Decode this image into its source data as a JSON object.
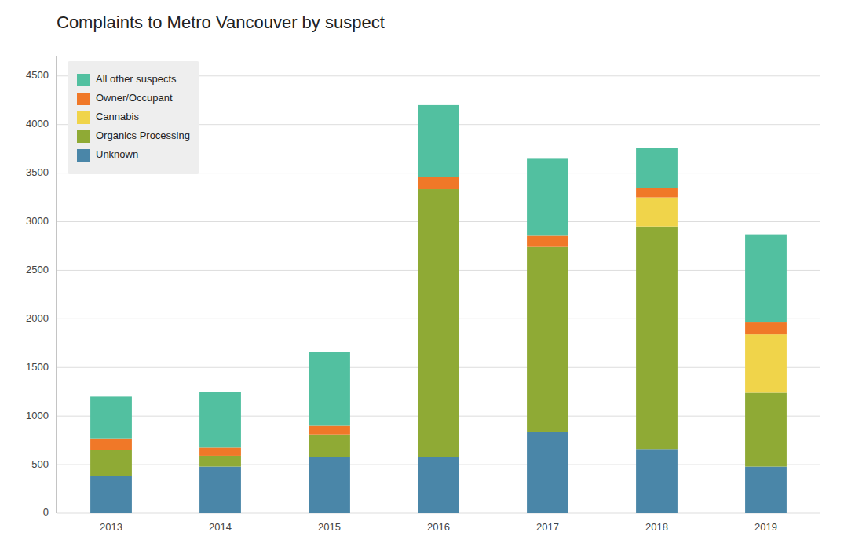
{
  "chart_data": {
    "type": "bar",
    "stacked": true,
    "title": "Complaints to Metro Vancouver by suspect",
    "categories": [
      "2013",
      "2014",
      "2015",
      "2016",
      "2017",
      "2018",
      "2019"
    ],
    "series": [
      {
        "name": "Unknown",
        "color": "#4a86a8",
        "values": [
          380,
          480,
          580,
          575,
          840,
          660,
          480
        ]
      },
      {
        "name": "Organics Processing",
        "color": "#8faa35",
        "values": [
          270,
          110,
          230,
          2760,
          1900,
          2290,
          760
        ]
      },
      {
        "name": "Cannabis",
        "color": "#f0d44a",
        "values": [
          0,
          0,
          0,
          0,
          0,
          300,
          600
        ]
      },
      {
        "name": "Owner/Occupant",
        "color": "#f07828",
        "values": [
          120,
          85,
          90,
          125,
          115,
          100,
          130
        ]
      },
      {
        "name": "All other suspects",
        "color": "#52c0a0",
        "values": [
          430,
          575,
          760,
          740,
          800,
          410,
          900
        ]
      }
    ],
    "ylim": [
      0,
      4700
    ],
    "yticks": [
      0,
      500,
      1000,
      1500,
      2000,
      2500,
      3000,
      3500,
      4000,
      4500
    ],
    "grid": true,
    "legend": "upper left"
  }
}
